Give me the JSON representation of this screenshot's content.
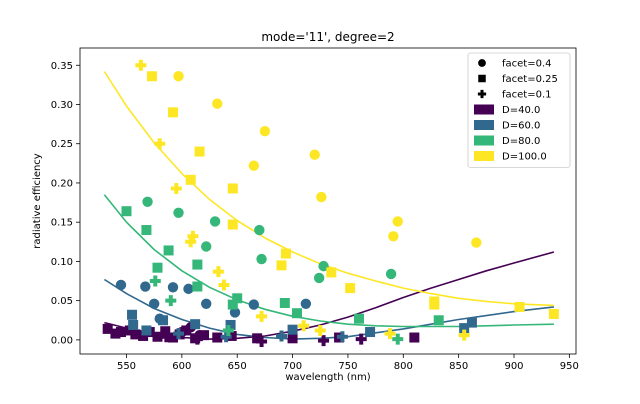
{
  "chart_data": {
    "type": "scatter",
    "title": "mode='11', degree=2",
    "xlabel": "wavelength (nm)",
    "ylabel": "radiative efficiency",
    "xlim": [
      508,
      956
    ],
    "ylim": [
      -0.018,
      0.372
    ],
    "x_ticks": [
      550,
      600,
      650,
      700,
      750,
      800,
      850,
      900,
      950
    ],
    "y_ticks": [
      0.0,
      0.05,
      0.1,
      0.15,
      0.2,
      0.25,
      0.3,
      0.35
    ],
    "y_tick_labels": [
      "0.00",
      "0.05",
      "0.10",
      "0.15",
      "0.20",
      "0.25",
      "0.30",
      "0.35"
    ],
    "grid": false,
    "legend_position": "top-right",
    "legend": {
      "markers": [
        {
          "label": "facet=0.4",
          "shape": "circle"
        },
        {
          "label": "facet=0.25",
          "shape": "square"
        },
        {
          "label": "facet=0.1",
          "shape": "plus"
        }
      ],
      "colors": [
        {
          "label": "D=40.0",
          "color": "#440154"
        },
        {
          "label": "D=60.0",
          "color": "#31688e"
        },
        {
          "label": "D=80.0",
          "color": "#35b779"
        },
        {
          "label": "D=100.0",
          "color": "#fde725"
        }
      ]
    },
    "series": [
      {
        "name": "D=40.0",
        "color": "#440154",
        "fit": {
          "x": [
            530,
            550,
            575,
            600,
            625,
            650,
            675,
            700,
            725,
            750,
            775,
            800,
            825,
            850,
            875,
            900,
            936
          ],
          "y": [
            0.022,
            0.015,
            0.008,
            0.003,
            0.001,
            0.002,
            0.005,
            0.011,
            0.019,
            0.029,
            0.041,
            0.054,
            0.066,
            0.077,
            0.088,
            0.098,
            0.112
          ]
        },
        "points": [
          {
            "x": 533,
            "y": 0.014,
            "shape": "square"
          },
          {
            "x": 540,
            "y": 0.008,
            "shape": "square"
          },
          {
            "x": 545,
            "y": 0.01,
            "shape": "square"
          },
          {
            "x": 553,
            "y": 0.012,
            "shape": "square"
          },
          {
            "x": 558,
            "y": 0.007,
            "shape": "square"
          },
          {
            "x": 565,
            "y": 0.005,
            "shape": "square"
          },
          {
            "x": 571,
            "y": 0.01,
            "shape": "square"
          },
          {
            "x": 578,
            "y": 0.004,
            "shape": "square"
          },
          {
            "x": 585,
            "y": 0.011,
            "shape": "square"
          },
          {
            "x": 592,
            "y": 0.003,
            "shape": "square"
          },
          {
            "x": 598,
            "y": 0.007,
            "shape": "square"
          },
          {
            "x": 604,
            "y": 0.012,
            "shape": "square"
          },
          {
            "x": 612,
            "y": 0.002,
            "shape": "square"
          },
          {
            "x": 620,
            "y": 0.006,
            "shape": "square"
          },
          {
            "x": 632,
            "y": 0.003,
            "shape": "square"
          },
          {
            "x": 645,
            "y": 0.005,
            "shape": "square"
          },
          {
            "x": 600,
            "y": 0.01,
            "shape": "circle"
          },
          {
            "x": 608,
            "y": 0.016,
            "shape": "circle"
          },
          {
            "x": 616,
            "y": 0.006,
            "shape": "circle"
          },
          {
            "x": 668,
            "y": 0.002,
            "shape": "square"
          },
          {
            "x": 700,
            "y": 0.002,
            "shape": "square"
          },
          {
            "x": 742,
            "y": 0.003,
            "shape": "square"
          },
          {
            "x": 810,
            "y": 0.003,
            "shape": "square"
          },
          {
            "x": 586,
            "y": 0.004,
            "shape": "plus"
          },
          {
            "x": 614,
            "y": 0.001,
            "shape": "plus"
          },
          {
            "x": 672,
            "y": -0.002,
            "shape": "plus"
          },
          {
            "x": 728,
            "y": -0.001,
            "shape": "plus"
          },
          {
            "x": 762,
            "y": 0.001,
            "shape": "plus"
          }
        ]
      },
      {
        "name": "D=60.0",
        "color": "#31688e",
        "fit": {
          "x": [
            530,
            550,
            575,
            600,
            625,
            650,
            675,
            700,
            725,
            750,
            775,
            800,
            825,
            850,
            875,
            900,
            936
          ],
          "y": [
            0.077,
            0.059,
            0.04,
            0.026,
            0.015,
            0.007,
            0.003,
            0.001,
            0.002,
            0.004,
            0.009,
            0.014,
            0.02,
            0.026,
            0.031,
            0.036,
            0.042
          ]
        },
        "points": [
          {
            "x": 545,
            "y": 0.07,
            "shape": "circle"
          },
          {
            "x": 567,
            "y": 0.068,
            "shape": "circle"
          },
          {
            "x": 575,
            "y": 0.046,
            "shape": "circle"
          },
          {
            "x": 580,
            "y": 0.027,
            "shape": "circle"
          },
          {
            "x": 592,
            "y": 0.067,
            "shape": "circle"
          },
          {
            "x": 606,
            "y": 0.065,
            "shape": "circle"
          },
          {
            "x": 622,
            "y": 0.046,
            "shape": "circle"
          },
          {
            "x": 648,
            "y": 0.035,
            "shape": "circle"
          },
          {
            "x": 665,
            "y": 0.045,
            "shape": "circle"
          },
          {
            "x": 712,
            "y": 0.046,
            "shape": "circle"
          },
          {
            "x": 555,
            "y": 0.032,
            "shape": "square"
          },
          {
            "x": 556,
            "y": 0.019,
            "shape": "square"
          },
          {
            "x": 568,
            "y": 0.012,
            "shape": "square"
          },
          {
            "x": 583,
            "y": 0.025,
            "shape": "square"
          },
          {
            "x": 612,
            "y": 0.02,
            "shape": "square"
          },
          {
            "x": 644,
            "y": 0.019,
            "shape": "square"
          },
          {
            "x": 700,
            "y": 0.013,
            "shape": "square"
          },
          {
            "x": 770,
            "y": 0.01,
            "shape": "square"
          },
          {
            "x": 855,
            "y": 0.015,
            "shape": "square"
          },
          {
            "x": 862,
            "y": 0.022,
            "shape": "square"
          },
          {
            "x": 597,
            "y": 0.008,
            "shape": "plus"
          },
          {
            "x": 640,
            "y": 0.004,
            "shape": "plus"
          },
          {
            "x": 690,
            "y": 0.005,
            "shape": "plus"
          },
          {
            "x": 745,
            "y": 0.004,
            "shape": "plus"
          }
        ]
      },
      {
        "name": "D=80.0",
        "color": "#35b779",
        "fit": {
          "x": [
            530,
            550,
            575,
            600,
            625,
            650,
            675,
            700,
            725,
            750,
            775,
            800,
            825,
            850,
            875,
            900,
            936
          ],
          "y": [
            0.185,
            0.15,
            0.115,
            0.088,
            0.067,
            0.051,
            0.039,
            0.03,
            0.024,
            0.02,
            0.018,
            0.017,
            0.017,
            0.017,
            0.018,
            0.019,
            0.02
          ]
        },
        "points": [
          {
            "x": 550,
            "y": 0.164,
            "shape": "square"
          },
          {
            "x": 568,
            "y": 0.14,
            "shape": "square"
          },
          {
            "x": 578,
            "y": 0.092,
            "shape": "square"
          },
          {
            "x": 588,
            "y": 0.114,
            "shape": "square"
          },
          {
            "x": 614,
            "y": 0.096,
            "shape": "square"
          },
          {
            "x": 614,
            "y": 0.068,
            "shape": "square"
          },
          {
            "x": 646,
            "y": 0.045,
            "shape": "square"
          },
          {
            "x": 650,
            "y": 0.053,
            "shape": "square"
          },
          {
            "x": 693,
            "y": 0.047,
            "shape": "square"
          },
          {
            "x": 704,
            "y": 0.034,
            "shape": "square"
          },
          {
            "x": 760,
            "y": 0.027,
            "shape": "square"
          },
          {
            "x": 832,
            "y": 0.025,
            "shape": "square"
          },
          {
            "x": 569,
            "y": 0.176,
            "shape": "circle"
          },
          {
            "x": 597,
            "y": 0.162,
            "shape": "circle"
          },
          {
            "x": 630,
            "y": 0.151,
            "shape": "circle"
          },
          {
            "x": 622,
            "y": 0.119,
            "shape": "circle"
          },
          {
            "x": 670,
            "y": 0.14,
            "shape": "circle"
          },
          {
            "x": 672,
            "y": 0.103,
            "shape": "circle"
          },
          {
            "x": 728,
            "y": 0.094,
            "shape": "circle"
          },
          {
            "x": 724,
            "y": 0.079,
            "shape": "circle"
          },
          {
            "x": 789,
            "y": 0.084,
            "shape": "circle"
          },
          {
            "x": 576,
            "y": 0.075,
            "shape": "plus"
          },
          {
            "x": 590,
            "y": 0.05,
            "shape": "plus"
          },
          {
            "x": 642,
            "y": 0.012,
            "shape": "plus"
          },
          {
            "x": 795,
            "y": 0.001,
            "shape": "plus"
          }
        ]
      },
      {
        "name": "D=100.0",
        "color": "#fde725",
        "fit": {
          "x": [
            530,
            550,
            575,
            600,
            625,
            650,
            675,
            700,
            725,
            750,
            775,
            800,
            825,
            850,
            875,
            900,
            936
          ],
          "y": [
            0.342,
            0.298,
            0.251,
            0.212,
            0.179,
            0.152,
            0.13,
            0.112,
            0.097,
            0.085,
            0.075,
            0.066,
            0.059,
            0.053,
            0.049,
            0.046,
            0.044
          ]
        },
        "points": [
          {
            "x": 563,
            "y": 0.35,
            "shape": "plus"
          },
          {
            "x": 573,
            "y": 0.336,
            "shape": "square"
          },
          {
            "x": 597,
            "y": 0.336,
            "shape": "circle"
          },
          {
            "x": 592,
            "y": 0.29,
            "shape": "square"
          },
          {
            "x": 632,
            "y": 0.301,
            "shape": "circle"
          },
          {
            "x": 675,
            "y": 0.266,
            "shape": "circle"
          },
          {
            "x": 580,
            "y": 0.25,
            "shape": "plus"
          },
          {
            "x": 616,
            "y": 0.24,
            "shape": "square"
          },
          {
            "x": 720,
            "y": 0.236,
            "shape": "circle"
          },
          {
            "x": 665,
            "y": 0.222,
            "shape": "circle"
          },
          {
            "x": 608,
            "y": 0.204,
            "shape": "square"
          },
          {
            "x": 646,
            "y": 0.193,
            "shape": "square"
          },
          {
            "x": 595,
            "y": 0.193,
            "shape": "plus"
          },
          {
            "x": 726,
            "y": 0.182,
            "shape": "circle"
          },
          {
            "x": 795,
            "y": 0.151,
            "shape": "circle"
          },
          {
            "x": 646,
            "y": 0.147,
            "shape": "square"
          },
          {
            "x": 791,
            "y": 0.132,
            "shape": "circle"
          },
          {
            "x": 610,
            "y": 0.132,
            "shape": "plus"
          },
          {
            "x": 608,
            "y": 0.125,
            "shape": "plus"
          },
          {
            "x": 866,
            "y": 0.124,
            "shape": "circle"
          },
          {
            "x": 694,
            "y": 0.11,
            "shape": "square"
          },
          {
            "x": 690,
            "y": 0.095,
            "shape": "square"
          },
          {
            "x": 633,
            "y": 0.087,
            "shape": "plus"
          },
          {
            "x": 735,
            "y": 0.086,
            "shape": "square"
          },
          {
            "x": 638,
            "y": 0.07,
            "shape": "plus"
          },
          {
            "x": 752,
            "y": 0.066,
            "shape": "square"
          },
          {
            "x": 828,
            "y": 0.049,
            "shape": "square"
          },
          {
            "x": 828,
            "y": 0.045,
            "shape": "square"
          },
          {
            "x": 905,
            "y": 0.042,
            "shape": "square"
          },
          {
            "x": 936,
            "y": 0.033,
            "shape": "square"
          },
          {
            "x": 672,
            "y": 0.03,
            "shape": "plus"
          },
          {
            "x": 710,
            "y": 0.018,
            "shape": "plus"
          },
          {
            "x": 725,
            "y": 0.012,
            "shape": "plus"
          },
          {
            "x": 788,
            "y": 0.008,
            "shape": "plus"
          },
          {
            "x": 855,
            "y": 0.006,
            "shape": "plus"
          }
        ]
      }
    ]
  }
}
